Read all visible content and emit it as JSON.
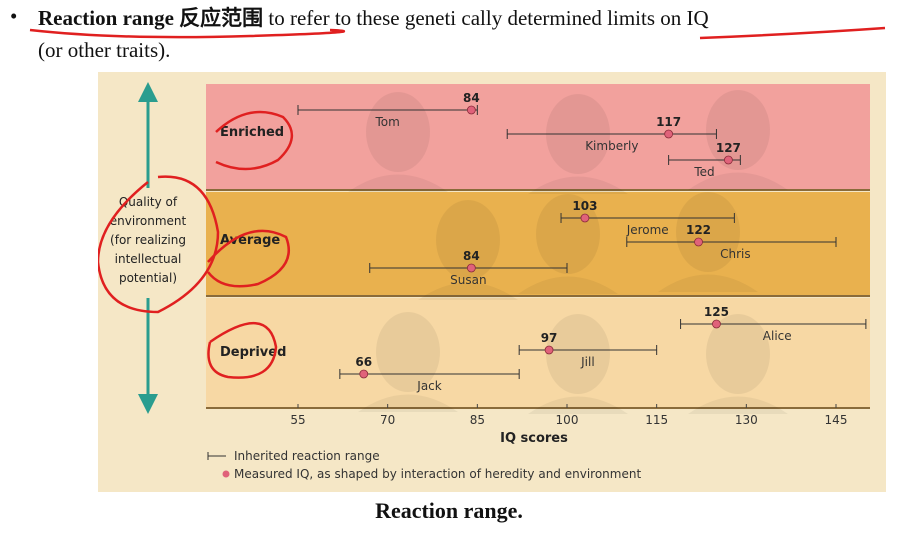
{
  "slide": {
    "bullet": "•",
    "term": "Reaction range",
    "term_cn": "反应范围",
    "rest_line1": " to refer to these geneti cally determined limits on IQ",
    "line2": "(or other traits).",
    "caption": "Reaction range."
  },
  "figure": {
    "quality_label": [
      "Quality of",
      "environment",
      "(for realizing",
      "intellectual",
      "potential)"
    ],
    "bands": [
      {
        "label": "Enriched",
        "color": "#f2a19d"
      },
      {
        "label": "Average",
        "color": "#e9b14e"
      },
      {
        "label": "Deprived",
        "color": "#f7d8a4"
      }
    ],
    "people": [
      {
        "name": "Tom",
        "band": 0,
        "iq": 84,
        "range": [
          55,
          85
        ]
      },
      {
        "name": "Kimberly",
        "band": 0,
        "iq": 117,
        "range": [
          90,
          125
        ]
      },
      {
        "name": "Ted",
        "band": 0,
        "iq": 127,
        "range": [
          117,
          129
        ]
      },
      {
        "name": "Jerome",
        "band": 1,
        "iq": 103,
        "range": [
          99,
          128
        ]
      },
      {
        "name": "Chris",
        "band": 1,
        "iq": 122,
        "range": [
          110,
          145
        ]
      },
      {
        "name": "Susan",
        "band": 1,
        "iq": 84,
        "range": [
          67,
          100
        ]
      },
      {
        "name": "Jill",
        "band": 2,
        "iq": 97,
        "range": [
          92,
          115
        ]
      },
      {
        "name": "Jack",
        "band": 2,
        "iq": 66,
        "range": [
          62,
          92
        ]
      },
      {
        "name": "Alice",
        "band": 2,
        "iq": 125,
        "range": [
          119,
          150
        ]
      }
    ],
    "x_ticks": [
      55,
      70,
      85,
      100,
      115,
      130,
      145
    ],
    "x_label": "IQ scores",
    "legend_range": "Inherited reaction range",
    "legend_dot": "Measured IQ, as shaped by interaction of heredity and environment",
    "accent_teal": "#2a9d8f",
    "dot_color": "#e0627a",
    "annotation_color": "#e02020"
  }
}
